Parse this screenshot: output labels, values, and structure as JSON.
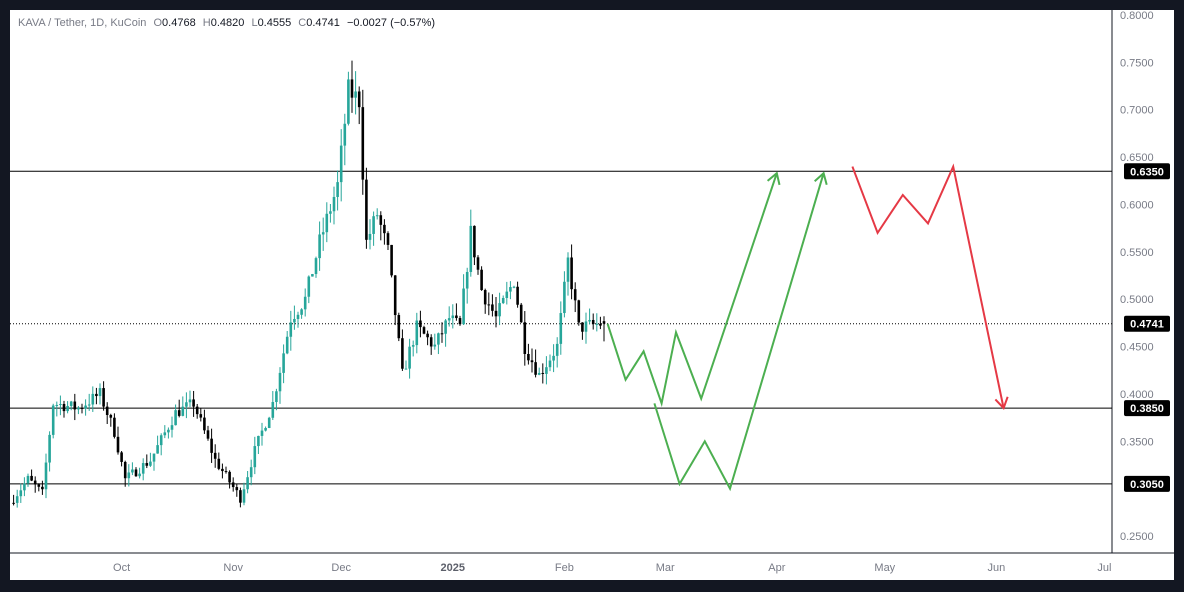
{
  "legend": {
    "symbol": "KAVA / Tether, 1D, KuCoin",
    "open_label": "O",
    "open": "0.4768",
    "high_label": "H",
    "high": "0.4820",
    "low_label": "L",
    "low": "0.4555",
    "close_label": "C",
    "close": "0.4741",
    "change": "−0.0027 (−0.57%)"
  },
  "colors": {
    "up": "#26a69a",
    "down": "#000000",
    "projection_up": "#4caf50",
    "projection_down": "#e53945",
    "level_line": "#000000",
    "tag_bg": "#000000"
  },
  "chart_data": {
    "type": "candlestick",
    "ylim": [
      0.25,
      0.8
    ],
    "y_ticks": [
      "0.8000",
      "0.7500",
      "0.7000",
      "0.6500",
      "0.6000",
      "0.5500",
      "0.5000",
      "0.4500",
      "0.4000",
      "0.3500",
      "0.2500"
    ],
    "x_ticks": [
      {
        "label": "Oct",
        "bold": false
      },
      {
        "label": "Nov",
        "bold": false
      },
      {
        "label": "Dec",
        "bold": false
      },
      {
        "label": "2025",
        "bold": true
      },
      {
        "label": "Feb",
        "bold": false
      },
      {
        "label": "Mar",
        "bold": false
      },
      {
        "label": "Apr",
        "bold": false
      },
      {
        "label": "May",
        "bold": false
      },
      {
        "label": "Jun",
        "bold": false
      },
      {
        "label": "Jul",
        "bold": false
      }
    ],
    "levels": [
      {
        "value": 0.635,
        "label": "0.6350",
        "style": "solid"
      },
      {
        "value": 0.385,
        "label": "0.3850",
        "style": "solid"
      },
      {
        "value": 0.305,
        "label": "0.3050",
        "style": "solid"
      },
      {
        "value": 0.4741,
        "label": "0.4741",
        "style": "dotted"
      }
    ],
    "candle_anchors": [
      [
        "2024-09-01",
        0.285
      ],
      [
        "2024-09-06",
        0.31
      ],
      [
        "2024-09-10",
        0.295
      ],
      [
        "2024-09-13",
        0.39
      ],
      [
        "2024-09-20",
        0.385
      ],
      [
        "2024-09-26",
        0.4
      ],
      [
        "2024-09-30",
        0.36
      ],
      [
        "2024-10-03",
        0.31
      ],
      [
        "2024-10-10",
        0.33
      ],
      [
        "2024-10-17",
        0.38
      ],
      [
        "2024-10-22",
        0.39
      ],
      [
        "2024-10-28",
        0.33
      ],
      [
        "2024-11-04",
        0.29
      ],
      [
        "2024-11-08",
        0.34
      ],
      [
        "2024-11-13",
        0.39
      ],
      [
        "2024-11-18",
        0.48
      ],
      [
        "2024-11-22",
        0.5
      ],
      [
        "2024-11-26",
        0.56
      ],
      [
        "2024-12-01",
        0.62
      ],
      [
        "2024-12-04",
        0.72
      ],
      [
        "2024-12-07",
        0.71
      ],
      [
        "2024-12-09",
        0.56
      ],
      [
        "2024-12-12",
        0.59
      ],
      [
        "2024-12-15",
        0.55
      ],
      [
        "2024-12-19",
        0.42
      ],
      [
        "2024-12-23",
        0.47
      ],
      [
        "2024-12-28",
        0.45
      ],
      [
        "2025-01-01",
        0.48
      ],
      [
        "2025-01-04",
        0.47
      ],
      [
        "2025-01-07",
        0.57
      ],
      [
        "2025-01-10",
        0.51
      ],
      [
        "2025-01-14",
        0.48
      ],
      [
        "2025-01-19",
        0.52
      ],
      [
        "2025-01-22",
        0.45
      ],
      [
        "2025-01-26",
        0.42
      ],
      [
        "2025-01-31",
        0.45
      ],
      [
        "2025-02-03",
        0.54
      ],
      [
        "2025-02-06",
        0.47
      ],
      [
        "2025-02-12",
        0.474
      ]
    ],
    "last_candle": {
      "date": "2025-02-12",
      "open": 0.4768,
      "high": 0.482,
      "low": 0.4555,
      "close": 0.4741
    },
    "projections": [
      {
        "name": "",
        "color": "projection_up",
        "arrow": true,
        "points": [
          [
            "2025-02-13",
            0.474
          ],
          [
            "2025-02-18",
            0.415
          ],
          [
            "2025-02-23",
            0.445
          ],
          [
            "2025-02-28",
            0.39
          ],
          [
            "2025-03-04",
            0.465
          ],
          [
            "2025-03-11",
            0.395
          ],
          [
            "2025-04-01",
            0.633
          ]
        ]
      },
      {
        "name": "",
        "color": "projection_up",
        "arrow": true,
        "points": [
          [
            "2025-02-26",
            0.39
          ],
          [
            "2025-03-05",
            0.305
          ],
          [
            "2025-03-12",
            0.35
          ],
          [
            "2025-03-19",
            0.3
          ],
          [
            "2025-04-14",
            0.633
          ]
        ]
      },
      {
        "name": "",
        "color": "projection_down",
        "arrow": true,
        "points": [
          [
            "2025-04-22",
            0.64
          ],
          [
            "2025-04-29",
            0.57
          ],
          [
            "2025-05-06",
            0.61
          ],
          [
            "2025-05-13",
            0.58
          ],
          [
            "2025-05-20",
            0.64
          ],
          [
            "2025-06-03",
            0.385
          ]
        ]
      }
    ]
  }
}
